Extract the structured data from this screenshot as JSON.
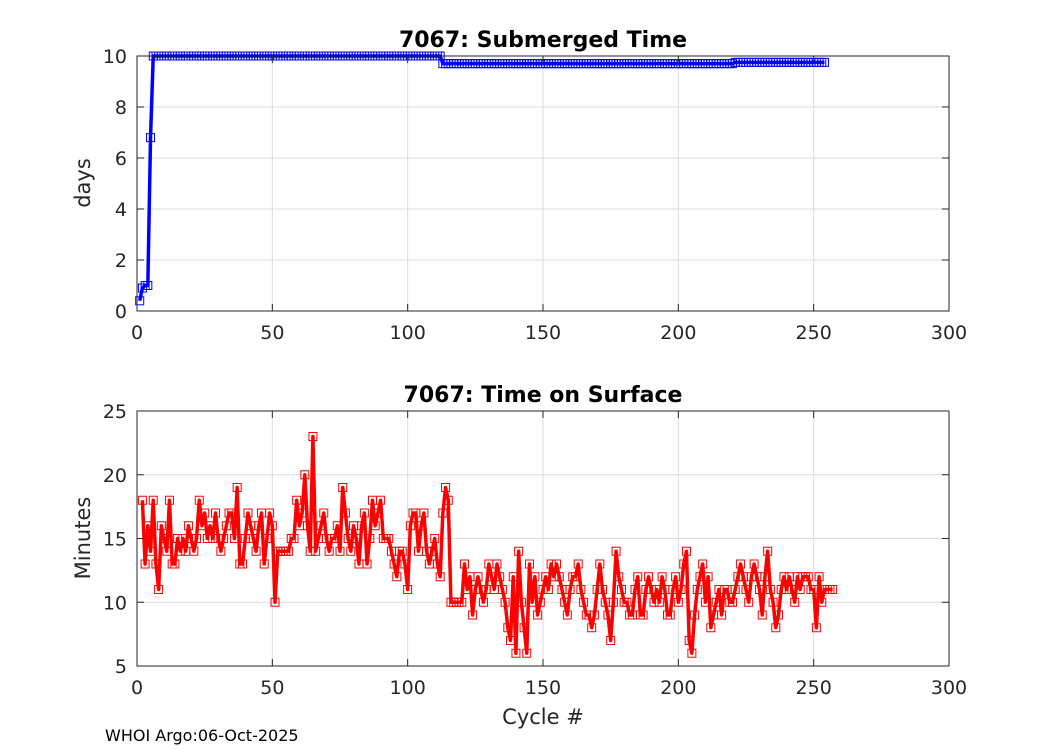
{
  "footer": "WHOI Argo:06-Oct-2025",
  "chart_data": [
    {
      "type": "line",
      "title": "7067: Submerged Time",
      "xlabel": "",
      "ylabel": "days",
      "xlim": [
        0,
        300
      ],
      "ylim": [
        0,
        10
      ],
      "xticks": [
        0,
        50,
        100,
        150,
        200,
        250,
        300
      ],
      "yticks": [
        0,
        2,
        4,
        6,
        8,
        10
      ],
      "grid": true,
      "color": "#0000ff",
      "marker": "square",
      "segments": [
        {
          "x_start": 1,
          "values": [
            0.4,
            0.9,
            1.0,
            1.0,
            6.8,
            10.0
          ]
        },
        {
          "x_start": 7,
          "x_end": 112,
          "value": 10.0
        },
        {
          "x_start": 113,
          "x_end": 220,
          "value": 9.7
        },
        {
          "x_start": 221,
          "x_end": 254,
          "value": 9.75
        }
      ]
    },
    {
      "type": "line",
      "title": "7067: Time on Surface",
      "xlabel": "Cycle #",
      "ylabel": "Minutes",
      "xlim": [
        0,
        300
      ],
      "ylim": [
        5,
        25
      ],
      "xticks": [
        0,
        50,
        100,
        150,
        200,
        250,
        300
      ],
      "yticks": [
        5,
        10,
        15,
        20,
        25
      ],
      "grid": true,
      "color": "#ff0000",
      "marker": "square",
      "x_start": 2,
      "values": [
        18,
        13,
        16,
        14,
        18,
        13,
        11,
        16,
        15,
        14,
        18,
        13,
        13,
        15,
        14,
        15,
        14,
        16,
        15,
        14,
        15,
        18,
        16,
        17,
        15,
        16,
        15,
        17,
        15,
        14,
        15,
        16,
        17,
        17,
        15,
        19,
        13,
        13,
        15,
        17,
        16,
        15,
        14,
        16,
        17,
        13,
        15,
        17,
        16,
        10,
        14,
        14,
        14,
        14,
        14,
        15,
        15,
        18,
        16,
        17,
        20,
        16,
        14,
        23,
        14,
        15,
        16,
        17,
        15,
        14,
        15,
        15,
        16,
        14,
        19,
        17,
        15,
        14,
        16,
        15,
        13,
        16,
        17,
        13,
        15,
        18,
        16,
        17,
        18,
        15,
        15,
        15,
        14,
        13,
        12,
        14,
        14,
        13,
        11,
        16,
        17,
        17,
        14,
        16,
        17,
        14,
        13,
        14,
        15,
        13,
        12,
        17,
        19,
        18,
        10,
        10,
        10,
        10,
        10,
        13,
        11,
        12,
        9,
        11,
        12,
        11,
        10,
        11,
        13,
        12,
        11,
        13,
        12,
        11,
        10,
        8,
        7,
        12,
        6,
        14,
        10,
        8,
        6,
        13,
        10,
        12,
        9,
        10,
        11,
        12,
        11,
        13,
        12,
        13,
        12,
        11,
        10,
        9,
        11,
        12,
        12,
        13,
        11,
        10,
        9,
        9,
        8,
        9,
        11,
        13,
        11,
        10,
        9,
        7,
        10,
        14,
        12,
        11,
        10,
        10,
        9,
        9,
        11,
        12,
        9,
        9,
        11,
        12,
        11,
        10,
        11,
        10,
        12,
        11,
        9,
        9,
        11,
        12,
        10,
        11,
        13,
        14,
        7,
        6,
        9,
        11,
        12,
        13,
        10,
        12,
        8,
        9,
        10,
        11,
        9,
        11,
        11,
        10,
        10,
        11,
        12,
        13,
        12,
        11,
        10,
        12,
        13,
        12,
        11,
        9,
        12,
        14,
        11,
        10,
        8,
        9,
        11,
        12,
        11,
        12,
        11,
        10,
        12,
        11,
        12,
        12,
        12,
        11,
        11,
        8,
        12,
        10,
        11,
        11,
        11,
        11
      ]
    }
  ]
}
